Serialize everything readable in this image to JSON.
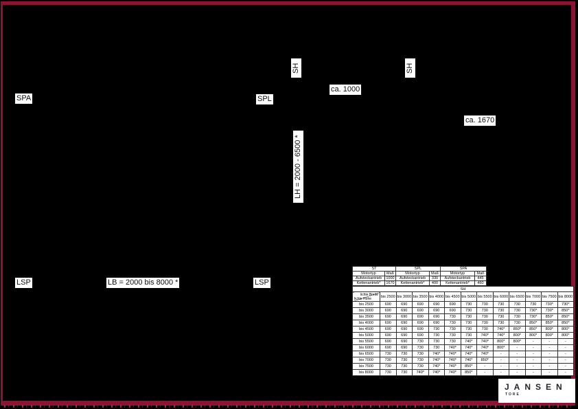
{
  "page": {
    "bg": "#000000",
    "border_color": "#8F1134",
    "speckle_color": "#C7216F"
  },
  "labels": {
    "spa": "SPA",
    "spl": "SPL",
    "sh_top_left": "SH",
    "sh_top_right": "SH",
    "dim_ca_1000": "ca. 1000",
    "dim_ca_1670": "ca. 1670",
    "dim_lh": "LH = 2000 - 6500 *",
    "dim_lb": "LB = 2000 bis 8000 *",
    "lsp_left": "LSP",
    "lsp_right": "LSP"
  },
  "motor_table": {
    "groups": [
      {
        "name": "ST",
        "headers": [
          "Motortyp",
          "Maß"
        ],
        "rows": [
          [
            "Aufsteckantrieb",
            "1000"
          ],
          [
            "Kettenantrieb*",
            "1670"
          ]
        ]
      },
      {
        "name": "SPL",
        "headers": [
          "Motortyp",
          "Maß"
        ],
        "rows": [
          [
            "Aufsteckantrieb",
            "330"
          ],
          [
            "Kettenantrieb*",
            "400"
          ]
        ]
      },
      {
        "name": "SPA",
        "headers": [
          "Motortyp",
          "Maß"
        ],
        "rows": [
          [
            "Aufsteckantrieb",
            "445"
          ],
          [
            "Kettenantrieb*",
            "460"
          ]
        ]
      }
    ]
  },
  "sh_table": {
    "title": "SH",
    "corner_top": "lichte Breite",
    "corner_bottom": "lichte Höhe",
    "col_headers": [
      "bis 2500",
      "bis 3000",
      "bis 3500",
      "bis 4000",
      "bis 4500",
      "bis 5000",
      "bis 5500",
      "bis 6000",
      "bis 6500",
      "bis 7000",
      "bis 7500",
      "bis 8000"
    ],
    "rows": [
      {
        "label": "bis 2500",
        "values": [
          "690",
          "690",
          "690",
          "690",
          "690",
          "730",
          "730",
          "730",
          "730",
          "730",
          "730*",
          "730*"
        ]
      },
      {
        "label": "bis 3000",
        "values": [
          "690",
          "690",
          "690",
          "690",
          "690",
          "730",
          "730",
          "730",
          "730",
          "730*",
          "730*",
          "850*"
        ]
      },
      {
        "label": "bis 3500",
        "values": [
          "690",
          "690",
          "690",
          "690",
          "730",
          "730",
          "730",
          "730",
          "730",
          "730*",
          "850*",
          "850*"
        ]
      },
      {
        "label": "bis 4000",
        "values": [
          "690",
          "690",
          "690",
          "690",
          "730",
          "730",
          "730",
          "730",
          "730",
          "850*",
          "850*",
          "850*"
        ]
      },
      {
        "label": "bis 4500",
        "values": [
          "690",
          "690",
          "690",
          "730",
          "730",
          "730",
          "730",
          "740*",
          "850*",
          "850*",
          "800*",
          "800*"
        ]
      },
      {
        "label": "bis 5000",
        "values": [
          "690",
          "690",
          "690",
          "730",
          "730",
          "730",
          "740*",
          "740*",
          "800*",
          "800*",
          "800*",
          "800*"
        ]
      },
      {
        "label": "bis 5500",
        "values": [
          "690",
          "690",
          "730",
          "730",
          "730",
          "740*",
          "740*",
          "800*",
          "800*",
          "-",
          "-",
          "-"
        ]
      },
      {
        "label": "bis 6000",
        "values": [
          "690",
          "690",
          "730",
          "730",
          "740*",
          "740*",
          "740*",
          "800*",
          "-",
          "-",
          "-",
          "-"
        ]
      },
      {
        "label": "bis 6500",
        "values": [
          "730",
          "730",
          "730",
          "740*",
          "740*",
          "740*",
          "740*",
          "-",
          "-",
          "-",
          "-",
          "-"
        ]
      },
      {
        "label": "bis 7000",
        "values": [
          "730",
          "730",
          "730",
          "740*",
          "740*",
          "740*",
          "850*",
          "-",
          "-",
          "-",
          "-",
          "-"
        ]
      },
      {
        "label": "bis 7500",
        "values": [
          "730",
          "730",
          "730",
          "740*",
          "740*",
          "850*",
          "-",
          "-",
          "-",
          "-",
          "-",
          "-"
        ]
      },
      {
        "label": "bis 8000",
        "values": [
          "730",
          "730",
          "740*",
          "740*",
          "740*",
          "850*",
          "-",
          "-",
          "-",
          "-",
          "-",
          "-"
        ]
      }
    ]
  },
  "logo": {
    "text": "JANSEN",
    "sub": "TORE"
  }
}
